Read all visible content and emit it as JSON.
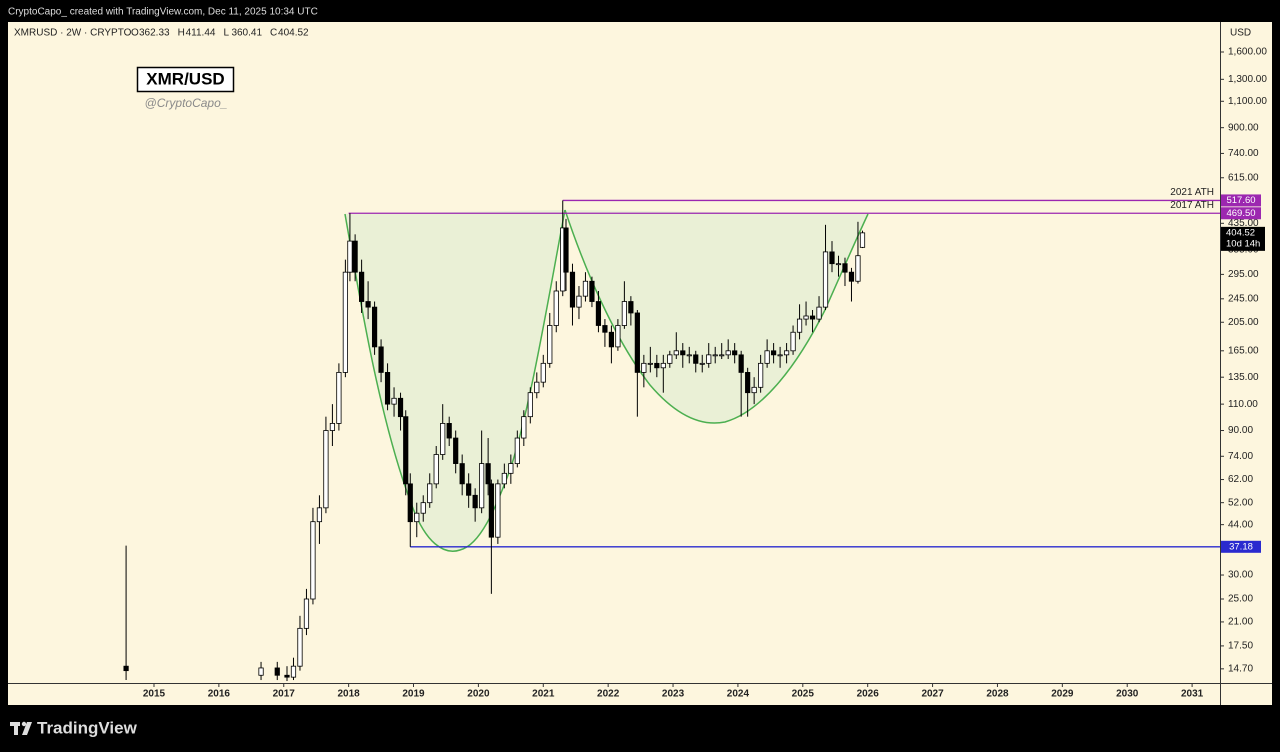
{
  "chart_data": {
    "type": "candlestick",
    "attribution": "CryptoCapo_  created with TradingView.com, Dec 11, 2025 10:34 UTC",
    "symbol": "XMRUSD · 2W · CRYPTO",
    "ohlc_header": [
      {
        "label": "O",
        "value": 362.33
      },
      {
        "label": "H",
        "value": 411.44
      },
      {
        "label": "L",
        "value": 360.41
      },
      {
        "label": "C",
        "value": 404.52
      }
    ],
    "title": "XMR/USD",
    "subtitle": "@CryptoCapo_",
    "y_axis_label": "USD",
    "footer": "TradingView",
    "log_scale": true,
    "up_color": "#ffffff",
    "down_color": "#000000",
    "xlim": [
      2012.75,
      2031.43
    ],
    "ylim": [
      13.2,
      2010
    ],
    "xticks": [
      2015,
      2016,
      2017,
      2018,
      2019,
      2020,
      2021,
      2022,
      2023,
      2024,
      2025,
      2026,
      2027,
      2028,
      2029,
      2030,
      2031
    ],
    "yticks": [
      {
        "value": 1600,
        "label": "1,600.00"
      },
      {
        "value": 1300,
        "label": "1,300.00"
      },
      {
        "value": 1100,
        "label": "1,100.00"
      },
      {
        "value": 900,
        "label": "900.00"
      },
      {
        "value": 740,
        "label": "740.00"
      },
      {
        "value": 615,
        "label": "615.00"
      },
      {
        "value": 435,
        "label": "435.00"
      },
      {
        "value": 355,
        "label": "355.00"
      },
      {
        "value": 295,
        "label": "295.00"
      },
      {
        "value": 245,
        "label": "245.00"
      },
      {
        "value": 205,
        "label": "205.00"
      },
      {
        "value": 165,
        "label": "165.00"
      },
      {
        "value": 135,
        "label": "135.00"
      },
      {
        "value": 110,
        "label": "110.00"
      },
      {
        "value": 90,
        "label": "90.00"
      },
      {
        "value": 74,
        "label": "74.00"
      },
      {
        "value": 62,
        "label": "62.00"
      },
      {
        "value": 52,
        "label": "52.00"
      },
      {
        "value": 44,
        "label": "44.00"
      },
      {
        "value": 30,
        "label": "30.00"
      },
      {
        "value": 25,
        "label": "25.00"
      },
      {
        "value": 21,
        "label": "21.00"
      },
      {
        "value": 17.5,
        "label": "17.50"
      },
      {
        "value": 14.7,
        "label": "14.70"
      }
    ],
    "levels": [
      {
        "name": "2021 ATH",
        "value": 517.6,
        "value_label": "517.60",
        "x_start": 2021.3,
        "color": "#9c27b0"
      },
      {
        "name": "2017 ATH",
        "value": 469.5,
        "value_label": "469.50",
        "x_start": 2018.0,
        "color": "#9c27b0"
      },
      {
        "value": 37.18,
        "value_label": "37.18",
        "x_start": 2018.95,
        "color": "#2a2acf"
      }
    ],
    "price_tag": {
      "label": "404.52",
      "countdown": "10d 14h"
    },
    "x": [
      2014.57,
      2016.65,
      2016.9,
      2017.05,
      2017.15,
      2017.25,
      2017.35,
      2017.45,
      2017.55,
      2017.65,
      2017.75,
      2017.85,
      2017.95,
      2018.02,
      2018.1,
      2018.2,
      2018.3,
      2018.4,
      2018.5,
      2018.6,
      2018.7,
      2018.8,
      2018.88,
      2018.95,
      2019.05,
      2019.15,
      2019.25,
      2019.35,
      2019.45,
      2019.55,
      2019.65,
      2019.75,
      2019.85,
      2019.95,
      2020.05,
      2020.15,
      2020.2,
      2020.3,
      2020.4,
      2020.5,
      2020.6,
      2020.7,
      2020.8,
      2020.9,
      2021.0,
      2021.1,
      2021.2,
      2021.3,
      2021.35,
      2021.45,
      2021.55,
      2021.65,
      2021.75,
      2021.85,
      2021.95,
      2022.05,
      2022.15,
      2022.25,
      2022.35,
      2022.45,
      2022.55,
      2022.65,
      2022.75,
      2022.85,
      2022.95,
      2023.05,
      2023.15,
      2023.25,
      2023.35,
      2023.45,
      2023.55,
      2023.65,
      2023.75,
      2023.85,
      2023.95,
      2024.05,
      2024.15,
      2024.25,
      2024.35,
      2024.45,
      2024.55,
      2024.65,
      2024.75,
      2024.85,
      2024.95,
      2025.05,
      2025.15,
      2025.25,
      2025.35,
      2025.45,
      2025.55,
      2025.65,
      2025.75,
      2025.85,
      2025.92
    ],
    "open": [
      15,
      14,
      14.8,
      14,
      13.8,
      15,
      20,
      25,
      45,
      50,
      90,
      95,
      140,
      300,
      380,
      300,
      240,
      230,
      170,
      140,
      110,
      115,
      100,
      60,
      45,
      48,
      52,
      60,
      75,
      95,
      85,
      70,
      60,
      55,
      50,
      70,
      60,
      40,
      60,
      65,
      70,
      85,
      100,
      120,
      130,
      150,
      200,
      260,
      420,
      300,
      230,
      250,
      280,
      240,
      200,
      190,
      170,
      200,
      240,
      220,
      140,
      150,
      150,
      145,
      150,
      160,
      165,
      160,
      160,
      150,
      150,
      160,
      160,
      160,
      165,
      160,
      140,
      120,
      125,
      150,
      165,
      160,
      160,
      165,
      190,
      210,
      215,
      210,
      230,
      350,
      320,
      320,
      300,
      280,
      362.33
    ],
    "high": [
      37.5,
      15.5,
      15.5,
      15,
      16,
      22,
      27,
      50,
      55,
      100,
      110,
      150,
      330,
      469.5,
      400,
      330,
      280,
      240,
      180,
      150,
      125,
      120,
      105,
      65,
      52,
      55,
      65,
      80,
      110,
      100,
      90,
      75,
      65,
      58,
      90,
      85,
      62,
      62,
      70,
      75,
      90,
      105,
      125,
      140,
      160,
      220,
      280,
      517.6,
      450,
      320,
      270,
      300,
      290,
      260,
      210,
      200,
      210,
      280,
      250,
      225,
      160,
      170,
      160,
      160,
      165,
      190,
      175,
      170,
      165,
      160,
      175,
      170,
      175,
      180,
      175,
      165,
      145,
      135,
      160,
      180,
      175,
      170,
      175,
      200,
      235,
      240,
      225,
      250,
      430,
      380,
      340,
      335,
      310,
      440,
      411.44
    ],
    "low": [
      13.5,
      13.5,
      13.5,
      13.4,
      13.5,
      14.5,
      19,
      24,
      38,
      48,
      80,
      90,
      135,
      280,
      280,
      220,
      210,
      160,
      130,
      105,
      100,
      90,
      55,
      37.18,
      40,
      45,
      50,
      58,
      72,
      80,
      65,
      55,
      50,
      45,
      48,
      55,
      26,
      38,
      58,
      60,
      68,
      80,
      95,
      115,
      125,
      145,
      190,
      250,
      260,
      200,
      210,
      240,
      230,
      190,
      170,
      150,
      165,
      195,
      200,
      100,
      125,
      140,
      135,
      120,
      145,
      155,
      145,
      150,
      140,
      140,
      145,
      150,
      155,
      155,
      150,
      100,
      100,
      110,
      120,
      145,
      150,
      145,
      150,
      160,
      180,
      200,
      190,
      205,
      225,
      300,
      290,
      270,
      240,
      275,
      360.41
    ],
    "close": [
      14.5,
      14.8,
      14,
      13.8,
      15,
      20,
      25,
      45,
      50,
      90,
      95,
      140,
      300,
      380,
      300,
      240,
      230,
      170,
      140,
      110,
      115,
      100,
      60,
      45,
      48,
      52,
      60,
      75,
      95,
      85,
      70,
      60,
      55,
      50,
      70,
      60,
      40,
      60,
      65,
      70,
      85,
      100,
      120,
      130,
      150,
      200,
      260,
      420,
      300,
      230,
      250,
      280,
      240,
      200,
      190,
      170,
      200,
      240,
      220,
      140,
      150,
      150,
      145,
      150,
      160,
      165,
      160,
      160,
      150,
      150,
      160,
      160,
      160,
      165,
      160,
      140,
      120,
      125,
      150,
      165,
      160,
      160,
      165,
      190,
      210,
      215,
      210,
      230,
      350,
      320,
      320,
      300,
      280,
      340,
      404.52
    ]
  }
}
